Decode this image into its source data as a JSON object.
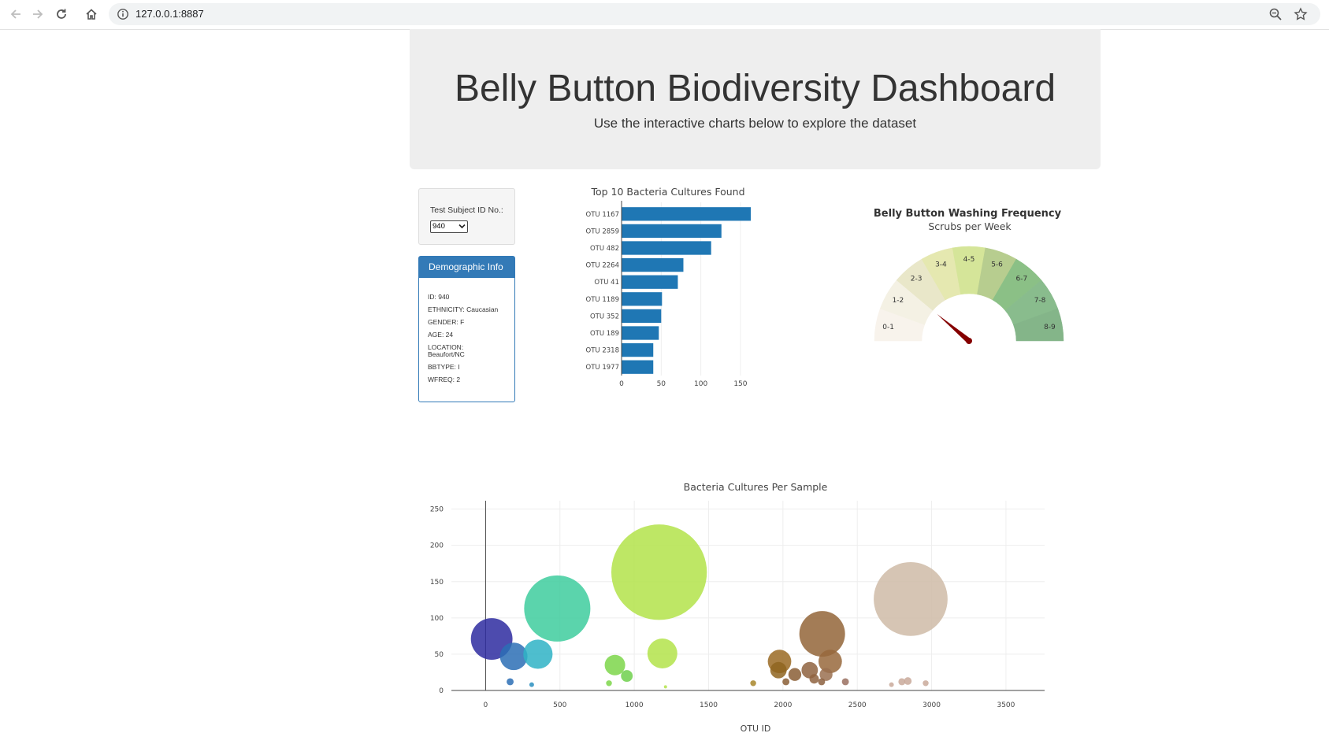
{
  "browser": {
    "url": "127.0.0.1:8887"
  },
  "header": {
    "title": "Belly Button Biodiversity Dashboard",
    "subtitle": "Use the interactive charts below to explore the dataset"
  },
  "selector": {
    "label": "Test Subject ID No.:",
    "selected": "940"
  },
  "demographic": {
    "title": "Demographic Info",
    "lines": [
      "ID: 940",
      "ETHNICITY: Caucasian",
      "GENDER: F",
      "AGE: 24",
      "LOCATION: Beaufort/NC",
      "BBTYPE: I",
      "WFREQ: 2"
    ]
  },
  "chart_data": [
    {
      "type": "bar",
      "orientation": "horizontal",
      "title": "Top 10 Bacteria Cultures Found",
      "categories": [
        "OTU 1167",
        "OTU 2859",
        "OTU 482",
        "OTU 2264",
        "OTU 41",
        "OTU 1189",
        "OTU 352",
        "OTU 189",
        "OTU 2318",
        "OTU 1977"
      ],
      "values": [
        163,
        126,
        113,
        78,
        71,
        51,
        50,
        47,
        40,
        40
      ],
      "xlim": [
        0,
        163
      ],
      "xticks": [
        0,
        50,
        100,
        150
      ],
      "color": "#1f77b4"
    },
    {
      "type": "gauge",
      "title": "Belly Button Washing Frequency",
      "subtitle": "Scrubs per Week",
      "sectors": [
        "0-1",
        "1-2",
        "2-3",
        "3-4",
        "4-5",
        "5-6",
        "6-7",
        "7-8",
        "8-9"
      ],
      "sector_colors": [
        "#f8f3ec",
        "#f4f1e4",
        "#e9e7c9",
        "#e5e8b0",
        "#d5e599",
        "#b7cd8f",
        "#8bc086",
        "#89bc8d",
        "#84b589"
      ],
      "value": 2,
      "needle_color": "#850000"
    },
    {
      "type": "scatter",
      "title": "Bacteria Cultures Per Sample",
      "xlabel": "OTU ID",
      "ylabel": "",
      "xlim": [
        -230,
        3760
      ],
      "ylim": [
        0,
        255
      ],
      "xticks": [
        0,
        500,
        1000,
        1500,
        2000,
        2500,
        3000,
        3500
      ],
      "yticks": [
        0,
        50,
        100,
        150,
        200,
        250
      ],
      "grid": true,
      "points": [
        {
          "x": 41,
          "y": 71,
          "color": "#2e2ba0"
        },
        {
          "x": 189,
          "y": 47,
          "color": "#2b6fb5"
        },
        {
          "x": 352,
          "y": 50,
          "color": "#2fb3c6"
        },
        {
          "x": 482,
          "y": 113,
          "color": "#3ecc9e"
        },
        {
          "x": 1167,
          "y": 163,
          "color": "#b3e34a"
        },
        {
          "x": 1189,
          "y": 51,
          "color": "#b3e34a"
        },
        {
          "x": 870,
          "y": 35,
          "color": "#7cd64a"
        },
        {
          "x": 950,
          "y": 20,
          "color": "#6fd04c"
        },
        {
          "x": 2859,
          "y": 126,
          "color": "#cfbba7"
        },
        {
          "x": 2264,
          "y": 78,
          "color": "#936538"
        },
        {
          "x": 2318,
          "y": 40,
          "color": "#98693c"
        },
        {
          "x": 1977,
          "y": 40,
          "color": "#9a6a23"
        },
        {
          "x": 1970,
          "y": 28,
          "color": "#8f6520"
        },
        {
          "x": 2080,
          "y": 22,
          "color": "#8a5e35"
        },
        {
          "x": 2180,
          "y": 28,
          "color": "#8f6340"
        },
        {
          "x": 2290,
          "y": 22,
          "color": "#9a7050"
        },
        {
          "x": 2210,
          "y": 16,
          "color": "#8f6340"
        },
        {
          "x": 2260,
          "y": 12,
          "color": "#8c6040"
        },
        {
          "x": 2020,
          "y": 12,
          "color": "#8a5e35"
        },
        {
          "x": 2420,
          "y": 12,
          "color": "#9a7060"
        },
        {
          "x": 1800,
          "y": 10,
          "color": "#a8862a"
        },
        {
          "x": 2800,
          "y": 12,
          "color": "#c9a99a"
        },
        {
          "x": 2840,
          "y": 13,
          "color": "#c9a99a"
        },
        {
          "x": 2960,
          "y": 10,
          "color": "#c9a99a"
        },
        {
          "x": 2730,
          "y": 8,
          "color": "#c9a99a"
        },
        {
          "x": 165,
          "y": 12,
          "color": "#2b6fb5"
        },
        {
          "x": 310,
          "y": 8,
          "color": "#2b8fc0"
        },
        {
          "x": 830,
          "y": 10,
          "color": "#7cd64a"
        },
        {
          "x": 1210,
          "y": 5,
          "color": "#b3e34a"
        }
      ]
    }
  ]
}
